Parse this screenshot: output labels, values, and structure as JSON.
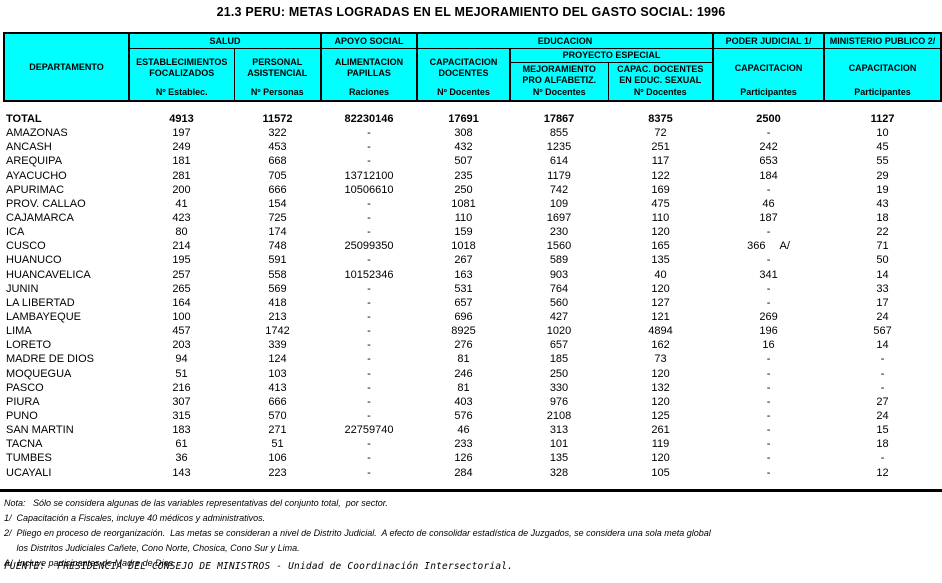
{
  "title": "21.3 PERU: METAS LOGRADAS EN EL MEJORAMIENTO DEL GASTO SOCIAL: 1996",
  "colors": {
    "header_bg": "#00ffff",
    "border": "#000000",
    "text": "#000000",
    "background": "#ffffff"
  },
  "table": {
    "corner": "DEPARTAMENTO",
    "groups": {
      "salud": "SALUD",
      "apoyo_social": "APOYO SOCIAL",
      "educacion": "EDUCACION",
      "proyecto_especial": "PROYECTO ESPECIAL",
      "poder_judicial": "PODER JUDICIAL 1/",
      "ministerio_publico": "MINISTERIO PUBLICO 2/"
    },
    "columns": [
      {
        "lines": [
          "ESTABLECIMIENTOS",
          "FOCALIZADOS"
        ],
        "unit": "Nº Establec."
      },
      {
        "lines": [
          "PERSONAL",
          "ASISTENCIAL"
        ],
        "unit": "Nº Personas"
      },
      {
        "lines": [
          "ALIMENTACION",
          "PAPILLAS"
        ],
        "unit": "Raciones"
      },
      {
        "lines": [
          "CAPACITACION",
          "DOCENTES"
        ],
        "unit": "Nº Docentes"
      },
      {
        "lines": [
          "MEJORAMIENTO",
          "PRO ALFABETIZ."
        ],
        "unit": "Nº Docentes"
      },
      {
        "lines": [
          "CAPAC. DOCENTES",
          "EN EDUC. SEXUAL"
        ],
        "unit": "Nº Docentes"
      },
      {
        "lines": [
          "CAPACITACION"
        ],
        "unit": "Participantes"
      },
      {
        "lines": [
          "CAPACITACION"
        ],
        "unit": "Participantes"
      }
    ],
    "rows": [
      {
        "name": "TOTAL",
        "bold": true,
        "cells": [
          "4913",
          "11572",
          "82230146",
          "17691",
          "17867",
          "8375",
          "2500",
          "1127"
        ]
      },
      {
        "name": "AMAZONAS",
        "cells": [
          "197",
          "322",
          "-",
          "308",
          "855",
          "72",
          "-",
          "10"
        ]
      },
      {
        "name": "ANCASH",
        "cells": [
          "249",
          "453",
          "-",
          "432",
          "1235",
          "251",
          "242",
          "45"
        ]
      },
      {
        "name": "AREQUIPA",
        "cells": [
          "181",
          "668",
          "-",
          "507",
          "614",
          "117",
          "653",
          "55"
        ]
      },
      {
        "name": "AYACUCHO",
        "cells": [
          "281",
          "705",
          "13712100",
          "235",
          "1179",
          "122",
          "184",
          "29"
        ]
      },
      {
        "name": "APURIMAC",
        "cells": [
          "200",
          "666",
          "10506610",
          "250",
          "742",
          "169",
          "-",
          "19"
        ]
      },
      {
        "name": "PROV. CALLAO",
        "cells": [
          "41",
          "154",
          "-",
          "1081",
          "109",
          "475",
          "46",
          "43"
        ]
      },
      {
        "name": "CAJAMARCA",
        "cells": [
          "423",
          "725",
          "-",
          "110",
          "1697",
          "110",
          "187",
          "18"
        ]
      },
      {
        "name": "ICA",
        "cells": [
          "80",
          "174",
          "-",
          "159",
          "230",
          "120",
          "-",
          "22"
        ]
      },
      {
        "name": "CUSCO",
        "cells": [
          "214",
          "748",
          "25099350",
          "1018",
          "1560",
          "165",
          "366",
          "71"
        ],
        "note_col": 6,
        "note": "A/"
      },
      {
        "name": "HUANUCO",
        "cells": [
          "195",
          "591",
          "-",
          "267",
          "589",
          "135",
          "-",
          "50"
        ]
      },
      {
        "name": "HUANCAVELICA",
        "cells": [
          "257",
          "558",
          "10152346",
          "163",
          "903",
          "40",
          "341",
          "14"
        ]
      },
      {
        "name": "JUNIN",
        "cells": [
          "265",
          "569",
          "-",
          "531",
          "764",
          "120",
          "-",
          "33"
        ]
      },
      {
        "name": "LA LIBERTAD",
        "cells": [
          "164",
          "418",
          "-",
          "657",
          "560",
          "127",
          "-",
          "17"
        ]
      },
      {
        "name": "LAMBAYEQUE",
        "cells": [
          "100",
          "213",
          "-",
          "696",
          "427",
          "121",
          "269",
          "24"
        ]
      },
      {
        "name": "LIMA",
        "cells": [
          "457",
          "1742",
          "-",
          "8925",
          "1020",
          "4894",
          "196",
          "567"
        ]
      },
      {
        "name": "LORETO",
        "cells": [
          "203",
          "339",
          "-",
          "276",
          "657",
          "162",
          "16",
          "14"
        ]
      },
      {
        "name": "MADRE DE DIOS",
        "cells": [
          "94",
          "124",
          "-",
          "81",
          "185",
          "73",
          "-",
          "-"
        ]
      },
      {
        "name": "MOQUEGUA",
        "cells": [
          "51",
          "103",
          "-",
          "246",
          "250",
          "120",
          "-",
          "-"
        ]
      },
      {
        "name": "PASCO",
        "cells": [
          "216",
          "413",
          "-",
          "81",
          "330",
          "132",
          "-",
          "-"
        ]
      },
      {
        "name": "PIURA",
        "cells": [
          "307",
          "666",
          "-",
          "403",
          "976",
          "120",
          "-",
          "27"
        ]
      },
      {
        "name": "PUNO",
        "cells": [
          "315",
          "570",
          "-",
          "576",
          "2108",
          "125",
          "-",
          "24"
        ]
      },
      {
        "name": "SAN MARTIN",
        "cells": [
          "183",
          "271",
          "22759740",
          "46",
          "313",
          "261",
          "-",
          "15"
        ]
      },
      {
        "name": "TACNA",
        "cells": [
          "61",
          "51",
          "-",
          "233",
          "101",
          "119",
          "-",
          "18"
        ]
      },
      {
        "name": "TUMBES",
        "cells": [
          "36",
          "106",
          "-",
          "126",
          "135",
          "120",
          "-",
          "-"
        ]
      },
      {
        "name": "UCAYALI",
        "cells": [
          "143",
          "223",
          "-",
          "284",
          "328",
          "105",
          "-",
          "12"
        ]
      }
    ]
  },
  "notes": {
    "nota": "Nota:   Sólo se considera algunas de las variables representativas del conjunto total,  por sector.",
    "n1": "1/  Capacitación a Fiscales, incluye 40 médicos y administrativos.",
    "n2": "2/  Pliego en proceso de reorganización.  Las metas se consideran a nivel de Distrito Judicial.  A efecto de consolidar estadística de Juzgados, se considera una sola meta global",
    "n2b": "     los Distritos Judiciales Cañete, Cono Norte, Chosica, Cono Sur y Lima.",
    "nA": "A/  Incluye participantes de Madre de Dios"
  },
  "source": "FUENTE:  PRESIDENCIA DEL CONSEJO DE MINISTROS - Unidad de Coordinación Intersectorial."
}
